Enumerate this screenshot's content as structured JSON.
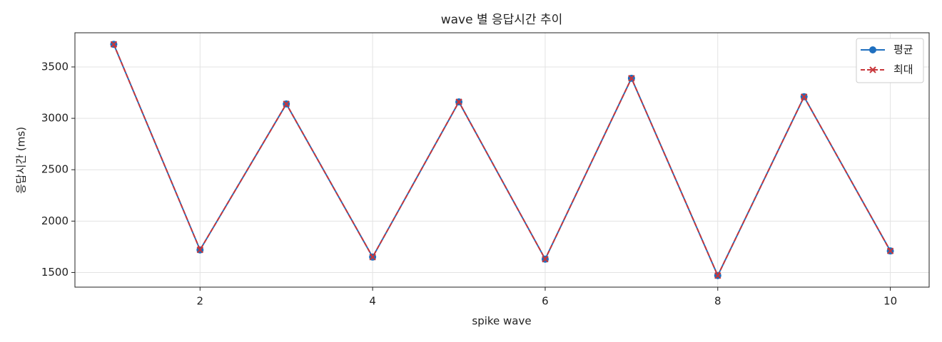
{
  "chart_data": {
    "type": "line",
    "title": "wave 별 응답시간 추이",
    "x_label": "spike wave",
    "y_label": "응답시간 (ms)",
    "x": [
      1,
      2,
      3,
      4,
      5,
      6,
      7,
      8,
      9,
      10
    ],
    "series": [
      {
        "name": "평균",
        "color": "#1f6fbf",
        "marker": "o",
        "linestyle": "solid",
        "values": [
          3720,
          1720,
          3140,
          1650,
          3160,
          1630,
          3390,
          1470,
          3210,
          1710
        ]
      },
      {
        "name": "최대",
        "color": "#c8363a",
        "marker": "x",
        "linestyle": "dashed",
        "values": [
          3720,
          1720,
          3140,
          1650,
          3160,
          1630,
          3390,
          1470,
          3210,
          1710
        ]
      }
    ],
    "xlim": [
      0.55,
      10.45
    ],
    "xticks": [
      2,
      4,
      6,
      8,
      10
    ],
    "ylim": [
      1357.5,
      3832.5
    ],
    "yticks": [
      1500,
      2000,
      2500,
      3000,
      3500
    ],
    "grid": true,
    "legend": "upper right"
  }
}
